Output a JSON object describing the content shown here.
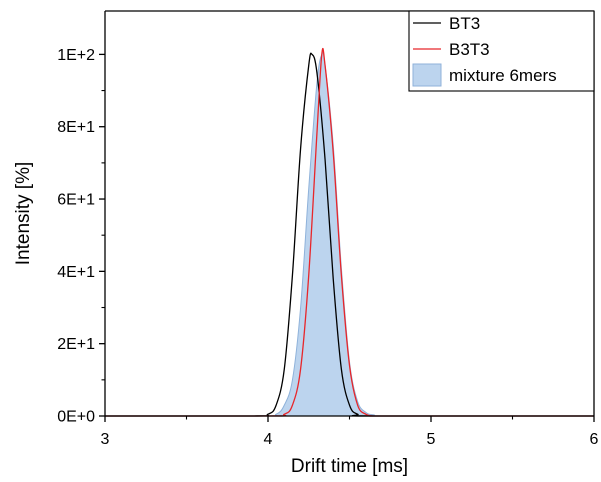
{
  "chart_data": {
    "type": "line",
    "xlabel": "Drift time [ms]",
    "ylabel": "Intensity [%]",
    "xlim": [
      3,
      6
    ],
    "ylim": [
      0,
      112
    ],
    "x_ticks": [
      {
        "value": 3,
        "label": "3"
      },
      {
        "value": 4,
        "label": "4"
      },
      {
        "value": 5,
        "label": "5"
      },
      {
        "value": 6,
        "label": "6"
      }
    ],
    "y_ticks": [
      {
        "value": 0,
        "label": "0E+0"
      },
      {
        "value": 20,
        "label": "2E+1"
      },
      {
        "value": 40,
        "label": "4E+1"
      },
      {
        "value": 60,
        "label": "6E+1"
      },
      {
        "value": 80,
        "label": "8E+1"
      },
      {
        "value": 100,
        "label": "1E+2"
      }
    ],
    "legend_position": "top-right",
    "series": [
      {
        "name": "BT3",
        "style": "line",
        "color": "#000000",
        "x": [
          3.0,
          3.9,
          4.0,
          4.05,
          4.1,
          4.15,
          4.2,
          4.25,
          4.27,
          4.3,
          4.35,
          4.4,
          4.45,
          4.5,
          4.55,
          4.65,
          6.0
        ],
        "y": [
          0,
          0,
          0.5,
          3,
          13,
          39,
          74,
          97,
          100,
          95,
          71,
          38,
          13,
          3,
          0.5,
          0,
          0
        ]
      },
      {
        "name": "B3T3",
        "style": "line",
        "color": "#e8262a",
        "x": [
          3.0,
          4.0,
          4.1,
          4.15,
          4.2,
          4.25,
          4.3,
          4.33,
          4.35,
          4.4,
          4.45,
          4.5,
          4.55,
          4.6,
          4.65,
          4.75,
          6.0
        ],
        "y": [
          0,
          0,
          0.5,
          3,
          13,
          39,
          78,
          100,
          97,
          73,
          39,
          14,
          3,
          0.5,
          0,
          0,
          0
        ]
      },
      {
        "name": "mixture 6mers",
        "style": "area",
        "color": "#bcd4ee",
        "stroke": "#8fb2da",
        "x": [
          3.0,
          3.95,
          4.05,
          4.1,
          4.15,
          4.2,
          4.25,
          4.3,
          4.33,
          4.35,
          4.4,
          4.45,
          4.5,
          4.55,
          4.6,
          4.65,
          4.75,
          6.0
        ],
        "y": [
          0,
          0,
          0.5,
          3,
          10,
          30,
          63,
          92,
          100,
          97,
          75,
          41,
          15,
          4,
          1,
          0.3,
          0,
          0
        ]
      }
    ]
  }
}
